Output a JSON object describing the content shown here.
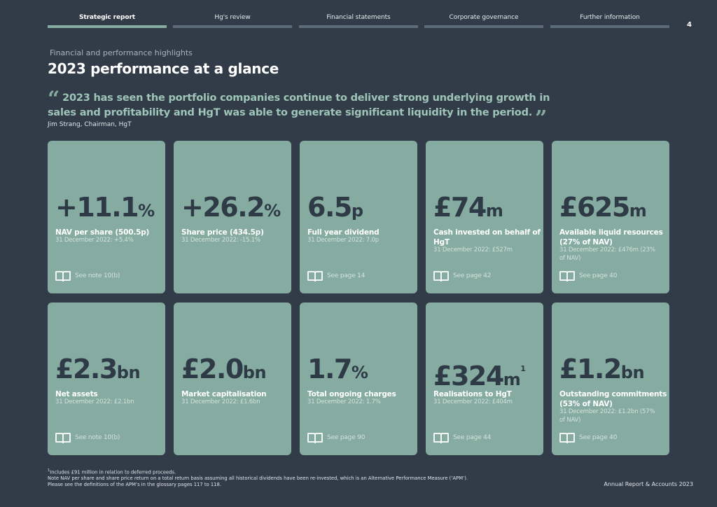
{
  "nav": {
    "tabs": [
      {
        "label": "Strategic report",
        "active": true
      },
      {
        "label": "Hg's review",
        "active": false
      },
      {
        "label": "Financial statements",
        "active": false
      },
      {
        "label": "Corporate governance",
        "active": false
      },
      {
        "label": "Further information",
        "active": false
      }
    ],
    "page_number": "4"
  },
  "header": {
    "eyebrow": "Financial and performance highlights",
    "title": "2023 performance at a glance"
  },
  "quote": {
    "open_mark": "“",
    "text": "2023 has seen the portfolio companies continue to deliver strong underlying growth in sales and profitability and HgT was able to generate significant liquidity in the period.",
    "close_mark": "”",
    "attribution": "Jim Strang, Chairman, HgT"
  },
  "cards": [
    {
      "value": "+11.1",
      "unit": "%",
      "sup": "",
      "label": "NAV per share (500.5p)",
      "comparison": "31 December 2022: +5.4%",
      "link": "See note 10(b)",
      "icon": "book-icon"
    },
    {
      "value": "+26.2",
      "unit": "%",
      "sup": "",
      "label": "Share price (434.5p)",
      "comparison": "31 December 2022: -15.1%",
      "link": "",
      "icon": ""
    },
    {
      "value": "6.5",
      "unit": "p",
      "sup": "",
      "label": "Full year dividend",
      "comparison": "31 December 2022: 7.0p",
      "link": "See page 14",
      "icon": "book-icon"
    },
    {
      "value": "£74",
      "unit": "m",
      "sup": "",
      "label": "Cash invested on behalf of HgT",
      "comparison": "31 December 2022: £527m",
      "link": "See page 42",
      "icon": "book-icon"
    },
    {
      "value": "£625",
      "unit": "m",
      "sup": "",
      "label": "Available liquid resources (27% of NAV)",
      "comparison": "31 December 2022: £476m (23% of NAV)",
      "link": "See page 40",
      "icon": "book-icon"
    },
    {
      "value": "£2.3",
      "unit": "bn",
      "sup": "",
      "label": "Net assets",
      "comparison": "31 December 2022: £2.1bn",
      "link": "See note 10(b)",
      "icon": "book-icon"
    },
    {
      "value": "£2.0",
      "unit": "bn",
      "sup": "",
      "label": "Market capitalisation",
      "comparison": "31 December 2022: £1.6bn",
      "link": "",
      "icon": ""
    },
    {
      "value": "1.7",
      "unit": "%",
      "sup": "",
      "label": "Total ongoing charges",
      "comparison": "31 December 2022: 1.7%",
      "link": "See page 90",
      "icon": "book-icon"
    },
    {
      "value": "£324",
      "unit": "m",
      "sup": "1",
      "label": "Realisations to HgT",
      "comparison": "31 December 2022: £404m",
      "link": "See page 44",
      "icon": "book-icon"
    },
    {
      "value": "£1.2",
      "unit": "bn",
      "sup": "",
      "label": "Outstanding commitments (53% of NAV)",
      "comparison": "31 December 2022: £1.2bn (57% of NAV)",
      "link": "See page 40",
      "icon": "book-icon"
    }
  ],
  "footnotes": {
    "marker": "1",
    "line1": "Includes £91 million in relation to deferred proceeds.",
    "line2": "Note NAV per share and share price return on a total return basis assuming all historical dividends have been re-invested, which is an Alternative Performance Measure (‘APM’).",
    "line3": "Please see the definitions of the APM’s in the glossary pages 117 to 118."
  },
  "publication": "Annual Report & Accounts 2023",
  "colors": {
    "background": "#323c48",
    "card": "#86aca1",
    "accent": "#86aca1",
    "kpi_text": "#2e3a46"
  }
}
